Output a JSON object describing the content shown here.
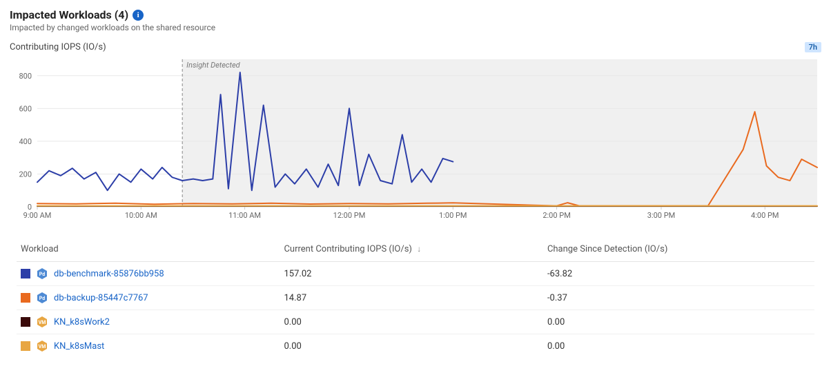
{
  "header": {
    "title": "Impacted Workloads (4)",
    "subtitle": "Impacted by changed workloads on the shared resource"
  },
  "chart": {
    "label": "Contributing IOPS (IO/s)",
    "range_badge": "7h",
    "type": "line",
    "ylim": [
      0,
      900
    ],
    "ytick_step": 200,
    "yticks": [
      "0",
      "200",
      "400",
      "600",
      "800"
    ],
    "xticks": [
      {
        "t": 0.0,
        "label": "9:00 AM"
      },
      {
        "t": 0.133,
        "label": "10:00 AM"
      },
      {
        "t": 0.266,
        "label": "11:00 AM"
      },
      {
        "t": 0.4,
        "label": "12:00 PM"
      },
      {
        "t": 0.533,
        "label": "1:00 PM"
      },
      {
        "t": 0.666,
        "label": "2:00 PM"
      },
      {
        "t": 0.8,
        "label": "3:00 PM"
      },
      {
        "t": 0.933,
        "label": "4:00 PM"
      }
    ],
    "insight_line_t": 0.186,
    "insight_label": "Insight Detected",
    "background_color": "#ffffff",
    "shaded_region_color": "#f0f0f0",
    "grid_color": "#e8e8e8",
    "axis_color": "#cccccc",
    "tick_label_color": "#666666",
    "tick_label_fontsize": 11,
    "insight_label_color": "#777777",
    "insight_line_color": "#888888",
    "line_width": 2,
    "series": [
      {
        "name": "db-benchmark",
        "color": "#2c3ea8",
        "points": [
          [
            0.0,
            150
          ],
          [
            0.015,
            220
          ],
          [
            0.03,
            190
          ],
          [
            0.045,
            235
          ],
          [
            0.06,
            170
          ],
          [
            0.075,
            210
          ],
          [
            0.09,
            100
          ],
          [
            0.105,
            200
          ],
          [
            0.12,
            150
          ],
          [
            0.133,
            230
          ],
          [
            0.148,
            170
          ],
          [
            0.16,
            240
          ],
          [
            0.173,
            180
          ],
          [
            0.186,
            160
          ],
          [
            0.2,
            170
          ],
          [
            0.212,
            160
          ],
          [
            0.225,
            170
          ],
          [
            0.235,
            685
          ],
          [
            0.245,
            110
          ],
          [
            0.26,
            820
          ],
          [
            0.275,
            100
          ],
          [
            0.29,
            620
          ],
          [
            0.305,
            120
          ],
          [
            0.318,
            200
          ],
          [
            0.33,
            140
          ],
          [
            0.345,
            230
          ],
          [
            0.36,
            120
          ],
          [
            0.373,
            260
          ],
          [
            0.386,
            130
          ],
          [
            0.4,
            600
          ],
          [
            0.413,
            130
          ],
          [
            0.425,
            320
          ],
          [
            0.44,
            160
          ],
          [
            0.455,
            140
          ],
          [
            0.468,
            440
          ],
          [
            0.48,
            150
          ],
          [
            0.493,
            230
          ],
          [
            0.505,
            150
          ],
          [
            0.52,
            295
          ],
          [
            0.533,
            275
          ],
          [
            0.533,
            275
          ]
        ]
      },
      {
        "name": "db-backup",
        "color": "#e96a1f",
        "points": [
          [
            0.0,
            20
          ],
          [
            0.05,
            18
          ],
          [
            0.1,
            22
          ],
          [
            0.15,
            16
          ],
          [
            0.2,
            20
          ],
          [
            0.25,
            18
          ],
          [
            0.3,
            22
          ],
          [
            0.35,
            17
          ],
          [
            0.4,
            20
          ],
          [
            0.45,
            18
          ],
          [
            0.5,
            22
          ],
          [
            0.533,
            24
          ],
          [
            0.666,
            6
          ],
          [
            0.68,
            25
          ],
          [
            0.695,
            6
          ],
          [
            0.8,
            6
          ],
          [
            0.86,
            6
          ],
          [
            0.905,
            350
          ],
          [
            0.92,
            580
          ],
          [
            0.935,
            250
          ],
          [
            0.95,
            180
          ],
          [
            0.965,
            160
          ],
          [
            0.98,
            290
          ],
          [
            1.0,
            240
          ]
        ]
      },
      {
        "name": "k8s-work2",
        "color": "#3a0a0a",
        "points": [
          [
            0.0,
            4
          ],
          [
            0.2,
            4
          ],
          [
            0.4,
            4
          ],
          [
            0.6,
            4
          ],
          [
            0.8,
            4
          ],
          [
            1.0,
            4
          ]
        ]
      },
      {
        "name": "k8s-mast",
        "color": "#e8a642",
        "points": [
          [
            0.0,
            6
          ],
          [
            0.2,
            6
          ],
          [
            0.4,
            6
          ],
          [
            0.6,
            6
          ],
          [
            0.8,
            6
          ],
          [
            1.0,
            6
          ]
        ]
      }
    ]
  },
  "table": {
    "columns": {
      "workload": "Workload",
      "iops": "Current Contributing IOPS (IO/s)",
      "change": "Change Since Detection (IO/s)"
    },
    "sort_column": "iops",
    "sort_dir": "desc",
    "rows": [
      {
        "swatch_color": "#2c3ea8",
        "icon_type": "pod",
        "icon_bg": "#4e8ad4",
        "icon_text": "Pd",
        "name": "db-benchmark-85876bb958",
        "iops": "157.02",
        "change": "-63.82"
      },
      {
        "swatch_color": "#e96a1f",
        "icon_type": "pod",
        "icon_bg": "#4e8ad4",
        "icon_text": "Pd",
        "name": "db-backup-85447c7767",
        "iops": "14.87",
        "change": "-0.37"
      },
      {
        "swatch_color": "#3a0a0a",
        "icon_type": "vm",
        "icon_bg": "#e8a642",
        "icon_text": "VM",
        "name": "KN_k8sWork2",
        "iops": "0.00",
        "change": "0.00"
      },
      {
        "swatch_color": "#e8a642",
        "icon_type": "vm",
        "icon_bg": "#e8a642",
        "icon_text": "VM",
        "name": "KN_k8sMast",
        "iops": "0.00",
        "change": "0.00"
      }
    ]
  }
}
